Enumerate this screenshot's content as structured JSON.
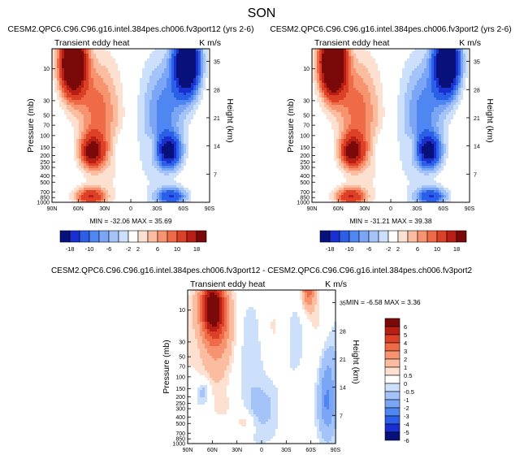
{
  "page_title": "SON",
  "chart_data": [
    {
      "type": "heatmap",
      "title": "CESM2.QPC6.C96.C96.g16.intel.384pes.ch006.fv3port12 (yrs 2-6)",
      "subtitle_left": "Transient eddy heat",
      "subtitle_right": "K m/s",
      "xlabel": "",
      "ylabel": "Pressure (mb)",
      "ylabel_right": "Height (km)",
      "x_ticks": [
        "90N",
        "60N",
        "30N",
        "0",
        "30S",
        "60S",
        "90S"
      ],
      "x_values": [
        90,
        60,
        30,
        0,
        -30,
        -60,
        -90
      ],
      "y_ticks": [
        "10",
        "30",
        "50",
        "70",
        "100",
        "150",
        "200",
        "250",
        "300",
        "400",
        "500",
        "700",
        "850",
        "1000"
      ],
      "y_values": [
        10,
        30,
        50,
        70,
        100,
        150,
        200,
        250,
        300,
        400,
        500,
        700,
        850,
        1000
      ],
      "y2_ticks": [
        "35",
        "28",
        "21",
        "14",
        "7"
      ],
      "y2_values": [
        35,
        28,
        21,
        14,
        7
      ],
      "ylim": [
        1000,
        5
      ],
      "stats": "MIN = -32.06   MAX = 35.69",
      "min": -32.06,
      "max": 35.69,
      "colorbar_labels": [
        "-18",
        "-10",
        "-6",
        "-2",
        "2",
        "6",
        "10",
        "18"
      ]
    },
    {
      "type": "heatmap",
      "title": "CESM2.QPC6.C96.C96.g16.intel.384pes.ch006.fv3port2 (yrs 2-6)",
      "subtitle_left": "Transient eddy heat",
      "subtitle_right": "K m/s",
      "xlabel": "",
      "ylabel": "Pressure (mb)",
      "ylabel_right": "Height (km)",
      "x_ticks": [
        "90N",
        "60N",
        "30N",
        "0",
        "30S",
        "60S",
        "90S"
      ],
      "x_values": [
        90,
        60,
        30,
        0,
        -30,
        -60,
        -90
      ],
      "y_ticks": [
        "10",
        "30",
        "50",
        "70",
        "100",
        "150",
        "200",
        "250",
        "300",
        "400",
        "500",
        "700",
        "850",
        "1000"
      ],
      "y_values": [
        10,
        30,
        50,
        70,
        100,
        150,
        200,
        250,
        300,
        400,
        500,
        700,
        850,
        1000
      ],
      "y2_ticks": [
        "35",
        "28",
        "21",
        "14",
        "7"
      ],
      "y2_values": [
        35,
        28,
        21,
        14,
        7
      ],
      "ylim": [
        1000,
        5
      ],
      "stats": "MIN = -31.21   MAX = 39.38",
      "min": -31.21,
      "max": 39.38,
      "colorbar_labels": [
        "-18",
        "-10",
        "-6",
        "-2",
        "2",
        "6",
        "10",
        "18"
      ]
    },
    {
      "type": "heatmap",
      "title": "CESM2.QPC6.C96.C96.g16.intel.384pes.ch006.fv3port12 - CESM2.QPC6.C96.C96.g16.intel.384pes.ch006.fv3port2",
      "subtitle_left": "Transient eddy heat",
      "subtitle_right": "K m/s",
      "xlabel": "",
      "ylabel": "Pressure (mb)",
      "ylabel_right": "Height (km)",
      "x_ticks": [
        "90N",
        "60N",
        "30N",
        "0",
        "30S",
        "60S",
        "90S"
      ],
      "x_values": [
        90,
        60,
        30,
        0,
        -30,
        -60,
        -90
      ],
      "y_ticks": [
        "10",
        "30",
        "50",
        "70",
        "100",
        "150",
        "200",
        "250",
        "300",
        "400",
        "500",
        "700",
        "850",
        "1000"
      ],
      "y_values": [
        10,
        30,
        50,
        70,
        100,
        150,
        200,
        250,
        300,
        400,
        500,
        700,
        850,
        1000
      ],
      "y2_ticks": [
        "35",
        "28",
        "21",
        "14",
        "7"
      ],
      "y2_values": [
        35,
        28,
        21,
        14,
        7
      ],
      "ylim": [
        1000,
        5
      ],
      "stats": "MIN = -6.58   MAX =  3.36",
      "min": -6.58,
      "max": 3.36,
      "colorbar_labels": [
        "6",
        "5",
        "4",
        "3",
        "2",
        "1",
        "0.5",
        "0",
        "-0.5",
        "-1",
        "-2",
        "-3",
        "-4",
        "-5",
        "-6"
      ]
    }
  ],
  "colors": {
    "main_scale": [
      "#08107a",
      "#1a2fd0",
      "#2c5fe8",
      "#4f86f2",
      "#7aa6f5",
      "#a4c3f8",
      "#cde0fb",
      "#ffffff",
      "#fde0cf",
      "#fbbca0",
      "#f7946f",
      "#ef6a47",
      "#dc4128",
      "#b81e13",
      "#7a0a0a"
    ],
    "diff_scale": [
      "#7a0a0a",
      "#b81e13",
      "#dc4128",
      "#ef6a47",
      "#f7946f",
      "#fbbca0",
      "#fde0cf",
      "#ffffff",
      "#cde0fb",
      "#a4c3f8",
      "#7aa6f5",
      "#4f86f2",
      "#2c5fe8",
      "#1a2fd0",
      "#08107a"
    ]
  }
}
